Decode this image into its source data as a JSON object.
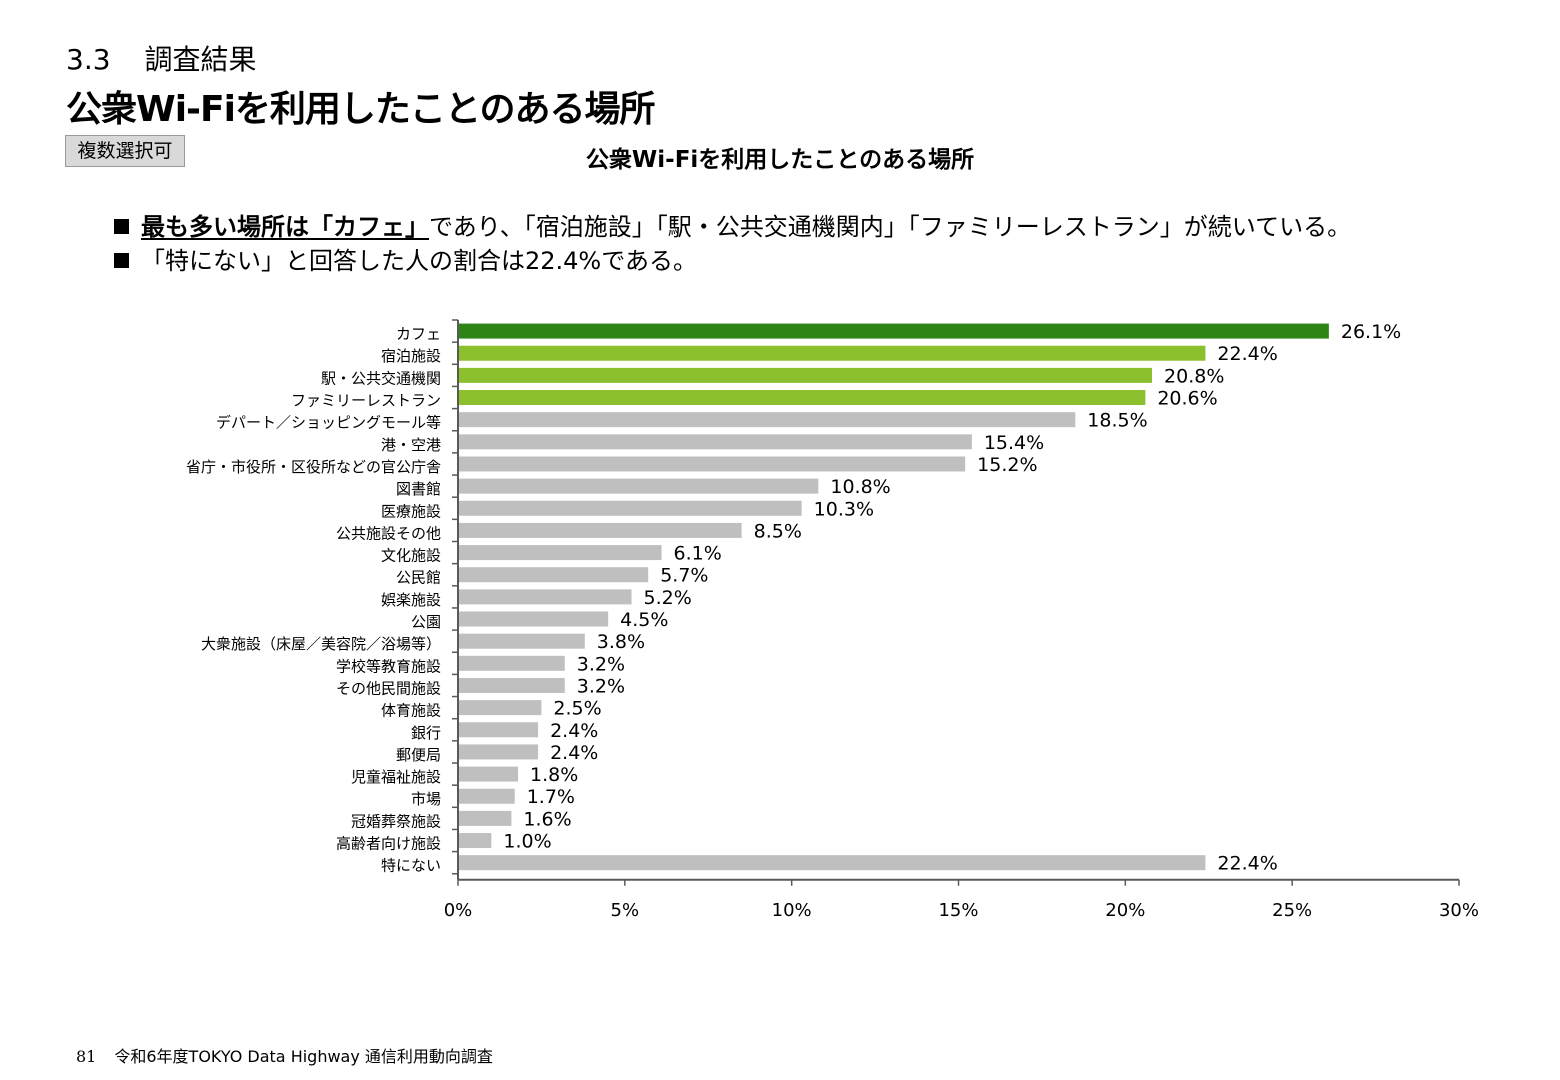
{
  "header": {
    "section_number": "3.3",
    "section_label": "調査結果",
    "title": "公衆Wi-Fiを利用したことのある場所",
    "tag": "複数選択可"
  },
  "bullets": {
    "line1": {
      "emph_prefix": "最も多い場所は",
      "emph_quote": "「カフェ」",
      "rest": "であり、「宿泊施設」「駅・公共交通機関内」「ファミリーレストラン」が続いている。"
    },
    "line2": "「特にない」と回答した人の割合は22.4%である。"
  },
  "colors": {
    "top1": "#2e8516",
    "top2_4": "#8cbf2d",
    "other": "#bfbfbf",
    "axis": "#595959"
  },
  "chart_data": {
    "type": "bar",
    "orientation": "horizontal",
    "title": "公衆Wi-Fiを利用したことのある場所",
    "categories": [
      "カフェ",
      "宿泊施設",
      "駅・公共交通機関",
      "ファミリーレストラン",
      "デパート／ショッピングモール等",
      "港・空港",
      "省庁・市役所・区役所などの官公庁舎",
      "図書館",
      "医療施設",
      "公共施設その他",
      "文化施設",
      "公民館",
      "娯楽施設",
      "公園",
      "大衆施設（床屋／美容院／浴場等）",
      "学校等教育施設",
      "その他民間施設",
      "体育施設",
      "銀行",
      "郵便局",
      "児童福祉施設",
      "市場",
      "冠婚葬祭施設",
      "高齢者向け施設",
      "特にない"
    ],
    "values": [
      26.1,
      22.4,
      20.8,
      20.6,
      18.5,
      15.4,
      15.2,
      10.8,
      10.3,
      8.5,
      6.1,
      5.7,
      5.2,
      4.5,
      3.8,
      3.2,
      3.2,
      2.5,
      2.4,
      2.4,
      1.8,
      1.7,
      1.6,
      1.0,
      22.4
    ],
    "value_labels": [
      "26.1%",
      "22.4%",
      "20.8%",
      "20.6%",
      "18.5%",
      "15.4%",
      "15.2%",
      "10.8%",
      "10.3%",
      "8.5%",
      "6.1%",
      "5.7%",
      "5.2%",
      "4.5%",
      "3.8%",
      "3.2%",
      "3.2%",
      "2.5%",
      "2.4%",
      "2.4%",
      "1.8%",
      "1.7%",
      "1.6%",
      "1.0%",
      "22.4%"
    ],
    "xlim": [
      0,
      30
    ],
    "xticks": [
      "0%",
      "5%",
      "10%",
      "15%",
      "20%",
      "25%",
      "30%"
    ],
    "xlabel": "",
    "ylabel": "",
    "grid": false,
    "legend": "none"
  },
  "footer": {
    "page_number": "81",
    "report_title": "令和6年度TOKYO Data Highway 通信利用動向調査"
  }
}
